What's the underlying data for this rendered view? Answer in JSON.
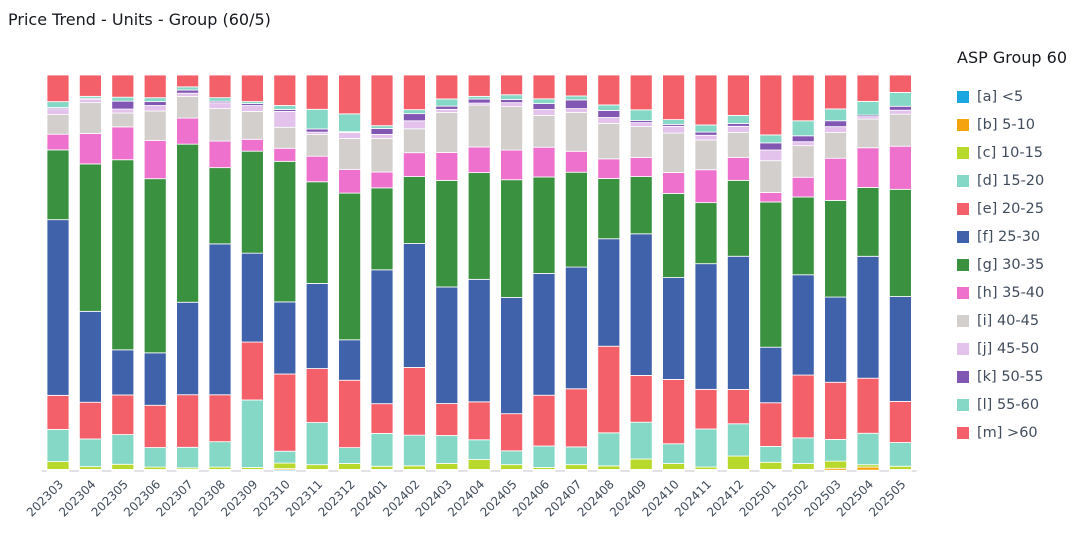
{
  "chart_data": {
    "type": "bar",
    "stacked": "percent",
    "title": "Price Trend - Units - Group (60/5)",
    "legend_title": "ASP Group 60",
    "legend_position": "right",
    "xlabel": "",
    "ylabel": "",
    "grid": false,
    "categories": [
      "202303",
      "202304",
      "202305",
      "202306",
      "202307",
      "202308",
      "202309",
      "202310",
      "202311",
      "202312",
      "202401",
      "202402",
      "202403",
      "202404",
      "202405",
      "202406",
      "202407",
      "202408",
      "202409",
      "202410",
      "202411",
      "202412",
      "202501",
      "202502",
      "202503",
      "202504",
      "202505"
    ],
    "series": [
      {
        "name": "[a] <5",
        "color": "#1aa6e0",
        "values": [
          0.2,
          0.2,
          0.2,
          0.2,
          0.2,
          0.2,
          0.2,
          0.3,
          0.2,
          0.2,
          0.2,
          0.2,
          0.2,
          0.2,
          0.2,
          0.2,
          0.2,
          0.2,
          0.2,
          0.2,
          0.2,
          0.2,
          0.2,
          0.2,
          0.2,
          0.2,
          0.2
        ]
      },
      {
        "name": "[b] 5-10",
        "color": "#f5a30f",
        "values": [
          0.2,
          0.2,
          0.2,
          0.2,
          0.2,
          0.2,
          0.2,
          0.3,
          0.2,
          0.2,
          0.2,
          0.2,
          0.2,
          0.2,
          0.2,
          0.2,
          0.2,
          0.2,
          0.2,
          0.2,
          0.2,
          0.2,
          0.2,
          0.2,
          0.5,
          0.8,
          0.2
        ]
      },
      {
        "name": "[c] 10-15",
        "color": "#b7d92c",
        "values": [
          2.0,
          0.7,
          1.3,
          0.6,
          0.4,
          0.6,
          0.5,
          1.4,
          1.2,
          1.5,
          0.8,
          0.9,
          1.5,
          2.5,
          1.2,
          0.5,
          1.2,
          0.9,
          2.6,
          1.5,
          0.6,
          3.3,
          1.8,
          1.5,
          1.8,
          0.6,
          0.8
        ]
      },
      {
        "name": "[d] 15-20",
        "color": "#85d8c6",
        "values": [
          8.2,
          7.0,
          7.5,
          5.0,
          5.2,
          6.5,
          17.0,
          3.0,
          10.7,
          4.0,
          8.3,
          7.7,
          7.0,
          5.0,
          3.5,
          5.4,
          4.5,
          8.4,
          9.2,
          5.0,
          9.6,
          8.0,
          4.0,
          6.5,
          5.5,
          8.0,
          6.0
        ]
      },
      {
        "name": "[e] 20-25",
        "color": "#f4606a",
        "values": [
          8.7,
          9.3,
          10.0,
          10.8,
          13.3,
          12.0,
          14.6,
          19.5,
          13.7,
          17.0,
          7.5,
          17.0,
          8.0,
          9.6,
          9.4,
          12.8,
          14.7,
          22.0,
          11.7,
          16.3,
          10.0,
          8.5,
          11.0,
          15.9,
          14.5,
          14.0,
          10.4
        ]
      },
      {
        "name": "[f] 25-30",
        "color": "#4062ab",
        "values": [
          44.8,
          23.0,
          11.4,
          13.4,
          23.4,
          38.6,
          22.4,
          18.2,
          21.6,
          10.2,
          33.8,
          31.1,
          29.2,
          31.0,
          29.4,
          30.7,
          30.8,
          27.3,
          35.4,
          25.8,
          31.7,
          33.0,
          14.0,
          25.4,
          21.6,
          31.0,
          26.5
        ]
      },
      {
        "name": "[g] 30-35",
        "color": "#3a913f",
        "values": [
          17.8,
          37.3,
          48.0,
          44.5,
          40.0,
          19.5,
          25.7,
          35.5,
          25.8,
          37.0,
          20.7,
          16.8,
          26.7,
          27.0,
          29.8,
          24.3,
          24.0,
          15.3,
          14.3,
          21.3,
          15.4,
          18.8,
          36.6,
          19.7,
          24.5,
          17.5,
          27.1
        ]
      },
      {
        "name": "[h] 35-40",
        "color": "#ee72cd",
        "values": [
          4.0,
          7.7,
          8.3,
          9.8,
          6.6,
          6.8,
          3.0,
          3.3,
          6.5,
          6.0,
          4.0,
          6.0,
          7.0,
          6.5,
          7.5,
          7.5,
          5.3,
          5.0,
          4.8,
          5.3,
          8.3,
          5.7,
          2.4,
          5.0,
          10.7,
          10.1,
          10.9
        ]
      },
      {
        "name": "[i] 40-45",
        "color": "#d2cfcc",
        "values": [
          5.0,
          7.8,
          3.5,
          7.5,
          5.5,
          8.3,
          7.0,
          5.3,
          5.5,
          7.8,
          8.5,
          6.0,
          10.0,
          10.6,
          11.0,
          8.0,
          9.8,
          9.0,
          7.7,
          10.0,
          7.5,
          6.2,
          8.0,
          8.0,
          6.5,
          7.3,
          8.1
        ]
      },
      {
        "name": "[j] 45-50",
        "color": "#e3c2ec",
        "values": [
          1.5,
          0.8,
          1.0,
          1.4,
          0.8,
          1.5,
          1.5,
          4.0,
          0.6,
          1.5,
          1.0,
          2.0,
          0.8,
          0.5,
          1.0,
          1.5,
          1.0,
          1.5,
          1.0,
          1.7,
          1.2,
          1.5,
          2.7,
          1.0,
          1.5,
          0.6,
          1.0
        ]
      },
      {
        "name": "[k] 50-55",
        "color": "#8257b3",
        "values": [
          0.3,
          0.3,
          2.0,
          1.0,
          0.8,
          0.4,
          0.5,
          0.5,
          0.8,
          0.2,
          1.5,
          1.8,
          0.8,
          1.0,
          0.8,
          1.5,
          2.2,
          1.8,
          0.5,
          0.5,
          0.8,
          0.7,
          1.8,
          1.5,
          1.5,
          0.4,
          1.0
        ]
      },
      {
        "name": "[l] 55-60",
        "color": "#85d8c6",
        "values": [
          1.5,
          0.5,
          1.0,
          1.0,
          0.8,
          0.9,
          0.5,
          1.0,
          5.0,
          4.5,
          0.7,
          1.0,
          1.8,
          0.7,
          1.2,
          1.2,
          1.0,
          1.4,
          2.7,
          1.2,
          1.8,
          2.0,
          2.0,
          3.8,
          3.0,
          3.5,
          3.5
        ]
      },
      {
        "name": "[m] >60",
        "color": "#f4606a",
        "values": [
          6.8,
          5.4,
          5.6,
          5.8,
          3.0,
          5.8,
          6.7,
          7.7,
          8.7,
          9.8,
          12.8,
          8.7,
          6.0,
          5.4,
          5.0,
          6.0,
          5.3,
          7.6,
          8.7,
          11.3,
          12.6,
          10.0,
          15.1,
          11.6,
          8.6,
          6.7,
          4.4
        ]
      }
    ],
    "ylim": [
      0,
      100
    ]
  }
}
